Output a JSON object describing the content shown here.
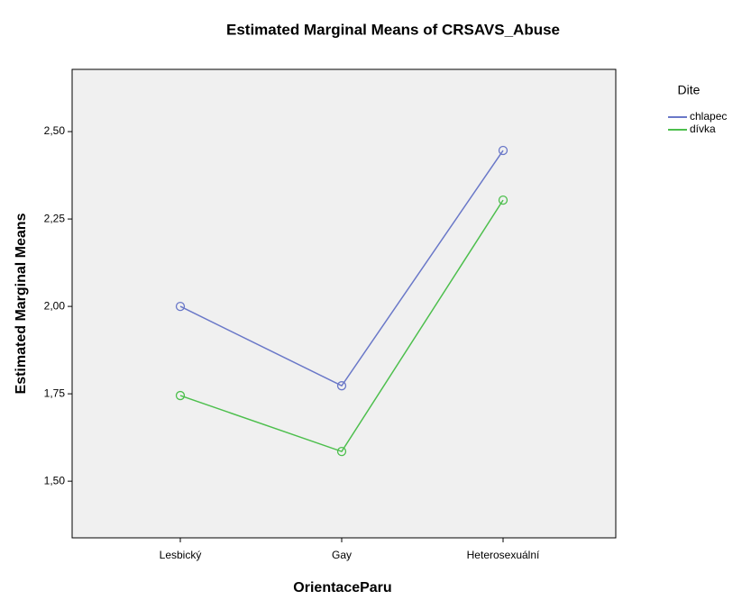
{
  "chart_data": {
    "type": "line",
    "title": "Estimated Marginal Means of CRSAVS_Abuse",
    "x_label": "OrientaceParu",
    "y_label": "Estimated Marginal Means",
    "categories": [
      "Lesbický",
      "Gay",
      "Heterosexuální"
    ],
    "series": [
      {
        "name": "chlapec",
        "color": "#6a78c8",
        "values": [
          2.0,
          1.773,
          2.446
        ]
      },
      {
        "name": "dívka",
        "color": "#4dbf4d",
        "values": [
          1.745,
          1.585,
          2.304
        ]
      }
    ],
    "legend_title": "Dite",
    "ylim": [
      1.338,
      2.678
    ],
    "yticks": [
      {
        "value": 1.5,
        "label": "1,50"
      },
      {
        "value": 1.75,
        "label": "1,75"
      },
      {
        "value": 2.0,
        "label": "2,00"
      },
      {
        "value": 2.25,
        "label": "2,25"
      },
      {
        "value": 2.5,
        "label": "2,50"
      }
    ],
    "grid": false,
    "legend": "right"
  }
}
